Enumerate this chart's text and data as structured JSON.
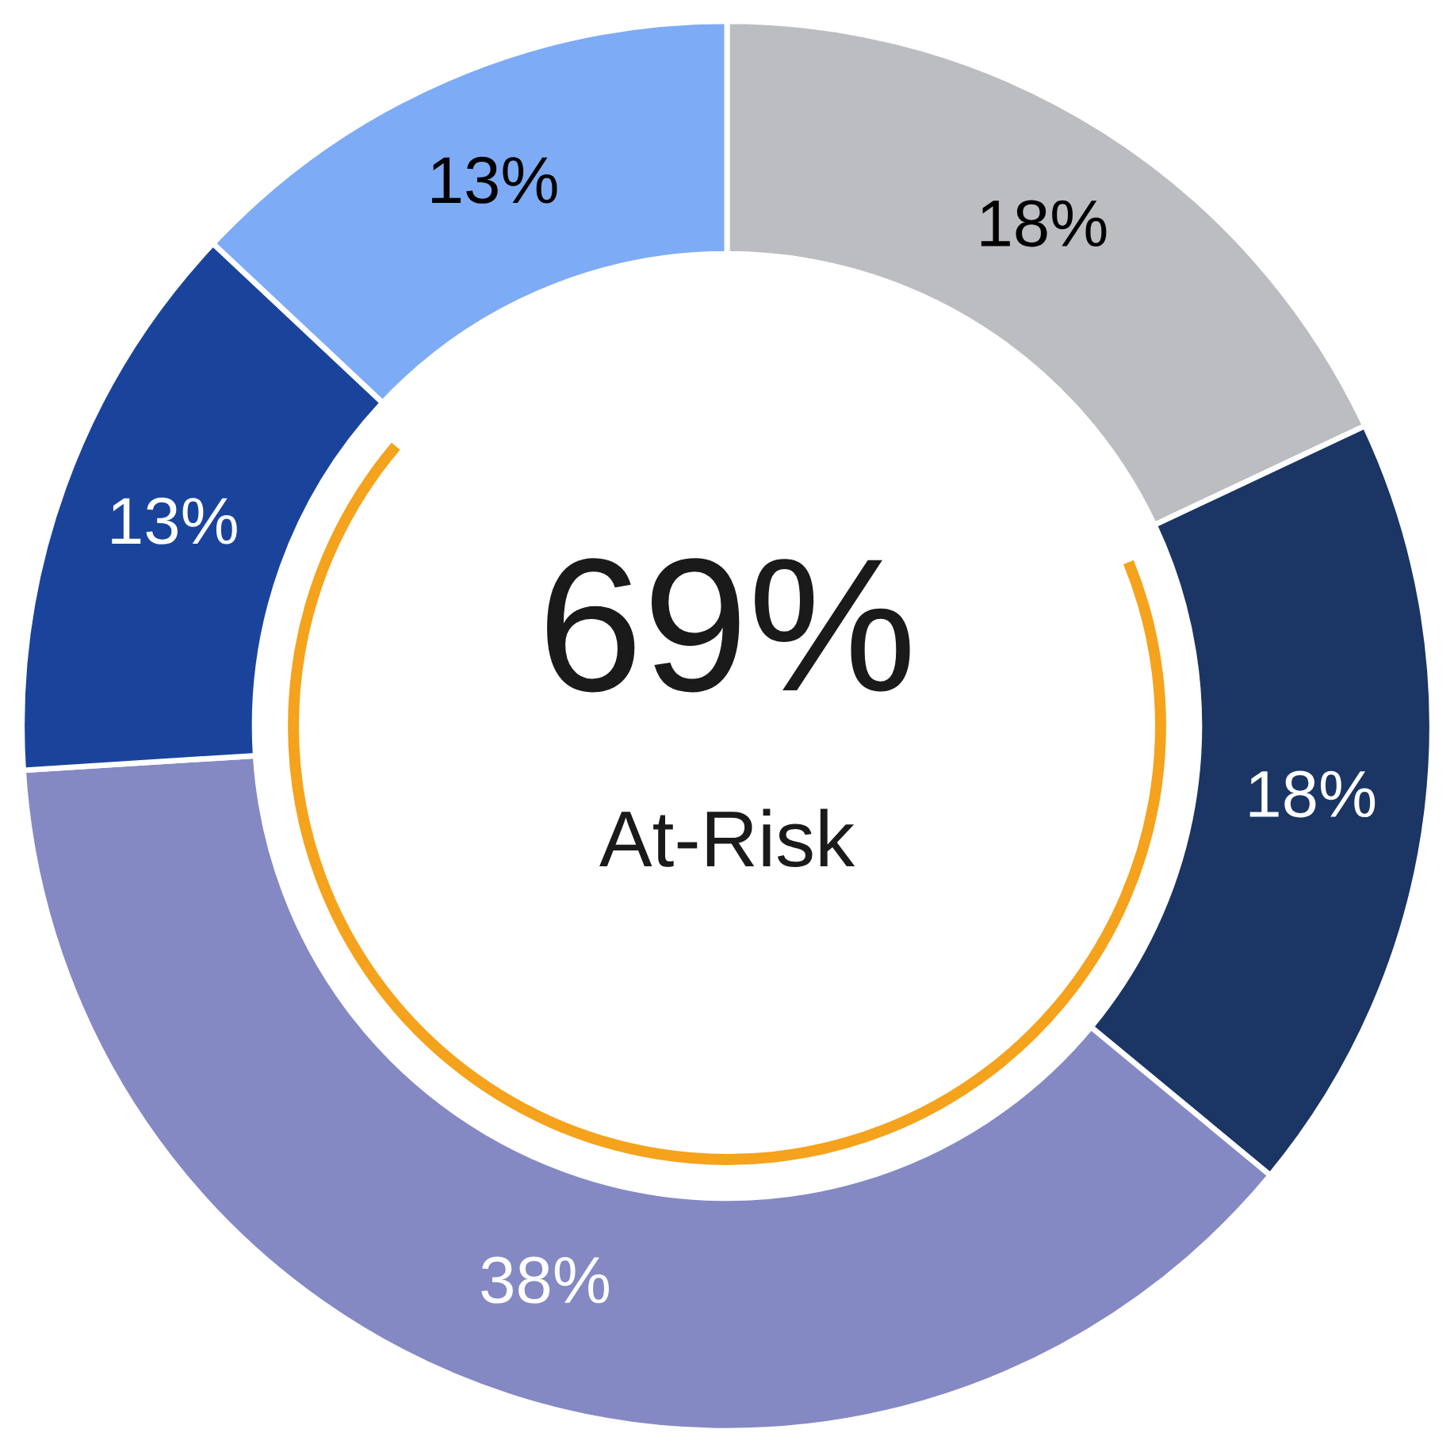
{
  "chart_data": {
    "type": "donut",
    "categories": [
      null,
      null,
      null,
      null,
      null
    ],
    "values": [
      18,
      18,
      38,
      13,
      13
    ],
    "colors": [
      "#bcbdc0",
      "#1b3564",
      "#8489c4",
      "#1a449c",
      "#7eabf5"
    ],
    "value_labels": [
      "18%",
      "18%",
      "38%",
      "13%",
      "13%"
    ],
    "annotations": [
      "69%",
      "At-Risk"
    ]
  }
}
